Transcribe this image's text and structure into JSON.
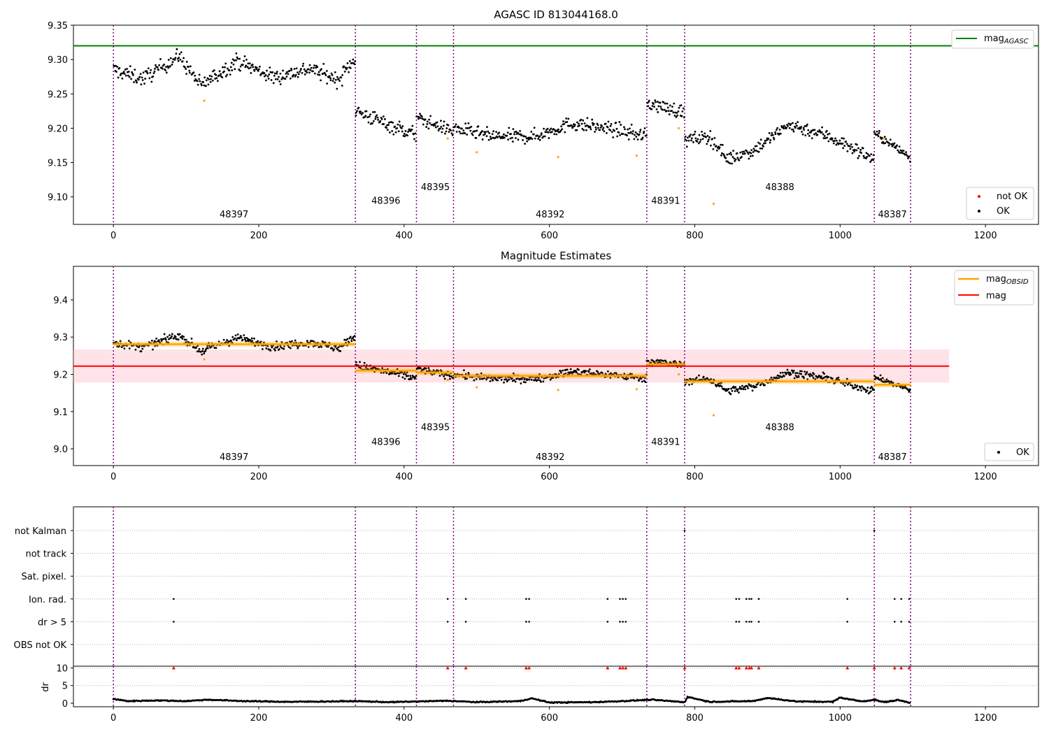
{
  "colors": {
    "ok": "#000000",
    "not_ok_panel1": "#ffa500",
    "not_ok_marker": "#ff0000",
    "agasc_line": "#008000",
    "obsid_line": "#ffa500",
    "obsid_band": "#ffa500",
    "mag_line": "#ff0000",
    "mag_band": "#ffc0cb",
    "boundary": "#800080",
    "ticks_dr_fill": "#000000"
  },
  "chart_data": [
    {
      "id": "top",
      "type": "scatter",
      "title": "AGASC ID 813044168.0",
      "xlim": [
        -55,
        1273
      ],
      "ylim": [
        9.06,
        9.35
      ],
      "xticks": [
        0,
        200,
        400,
        600,
        800,
        1000,
        1200
      ],
      "yticks": [
        "9.10",
        "9.15",
        "9.20",
        "9.25",
        "9.30",
        "9.35"
      ],
      "legend_upper": {
        "placement": "top-right",
        "entries": [
          {
            "label": "mag",
            "sub": "AGASC",
            "kind": "line"
          }
        ]
      },
      "legend_lower": {
        "placement": "bottom-right",
        "entries": [
          {
            "label": "not OK",
            "kind": "dot-red"
          },
          {
            "label": "OK",
            "kind": "dot-black"
          }
        ]
      },
      "agasc_mag": 9.32,
      "agasc_xrange": [
        -55,
        1273
      ],
      "boundaries": [
        0,
        333,
        417,
        468,
        734,
        786,
        1047,
        1097
      ],
      "obsid_labels": [
        {
          "text": "48397",
          "x": 166,
          "y": 9.07
        },
        {
          "text": "48396",
          "x": 375,
          "y": 9.09
        },
        {
          "text": "48395",
          "x": 443,
          "y": 9.11
        },
        {
          "text": "48392",
          "x": 601,
          "y": 9.07
        },
        {
          "text": "48391",
          "x": 760,
          "y": 9.09
        },
        {
          "text": "48388",
          "x": 917,
          "y": 9.11
        },
        {
          "text": "48387",
          "x": 1072,
          "y": 9.07
        }
      ],
      "segments": [
        {
          "x": [
            0,
            333
          ],
          "anchors": [
            [
              0,
              9.285
            ],
            [
              40,
              9.272
            ],
            [
              90,
              9.305
            ],
            [
              120,
              9.262
            ],
            [
              170,
              9.298
            ],
            [
              220,
              9.274
            ],
            [
              270,
              9.287
            ],
            [
              310,
              9.27
            ],
            [
              333,
              9.305
            ]
          ],
          "noise": 0.011
        },
        {
          "x": [
            333,
            417
          ],
          "anchors": [
            [
              333,
              9.225
            ],
            [
              360,
              9.213
            ],
            [
              417,
              9.19
            ]
          ],
          "noise": 0.011
        },
        {
          "x": [
            417,
            468
          ],
          "anchors": [
            [
              417,
              9.215
            ],
            [
              468,
              9.195
            ]
          ],
          "noise": 0.009
        },
        {
          "x": [
            468,
            734
          ],
          "anchors": [
            [
              468,
              9.2
            ],
            [
              520,
              9.188
            ],
            [
              580,
              9.188
            ],
            [
              630,
              9.207
            ],
            [
              690,
              9.198
            ],
            [
              734,
              9.188
            ]
          ],
          "noise": 0.01
        },
        {
          "x": [
            734,
            786
          ],
          "anchors": [
            [
              734,
              9.237
            ],
            [
              786,
              9.223
            ]
          ],
          "noise": 0.01
        },
        {
          "x": [
            786,
            1047
          ],
          "anchors": [
            [
              786,
              9.182
            ],
            [
              820,
              9.188
            ],
            [
              845,
              9.155
            ],
            [
              880,
              9.168
            ],
            [
              930,
              9.205
            ],
            [
              980,
              9.19
            ],
            [
              1047,
              9.155
            ]
          ],
          "noise": 0.01
        },
        {
          "x": [
            1047,
            1097
          ],
          "anchors": [
            [
              1047,
              9.193
            ],
            [
              1097,
              9.157
            ]
          ],
          "noise": 0.007
        }
      ],
      "not_ok_points": [
        [
          125,
          9.24
        ],
        [
          500,
          9.165
        ],
        [
          612,
          9.158
        ],
        [
          720,
          9.16
        ],
        [
          778,
          9.2
        ],
        [
          826,
          9.09
        ],
        [
          460,
          9.185
        ],
        [
          1060,
          9.185
        ]
      ]
    },
    {
      "id": "middle",
      "type": "scatter",
      "title": "Magnitude Estimates",
      "xlim": [
        -55,
        1273
      ],
      "ylim": [
        8.955,
        9.49
      ],
      "xticks": [
        0,
        200,
        400,
        600,
        800,
        1000,
        1200
      ],
      "yticks": [
        "9.0",
        "9.1",
        "9.2",
        "9.3",
        "9.4"
      ],
      "legend_upper": {
        "placement": "top-right",
        "entries": [
          {
            "label": "mag",
            "sub": "OBSID",
            "kind": "line-orange"
          },
          {
            "label": "mag",
            "sub": "",
            "kind": "line-red"
          }
        ]
      },
      "legend_lower": {
        "placement": "bottom-right",
        "entries": [
          {
            "label": "OK",
            "kind": "dot-black"
          }
        ]
      },
      "mag": 9.222,
      "mag_band": [
        9.178,
        9.267
      ],
      "mag_xrange": [
        -55,
        1150
      ],
      "obsid_mags": [
        {
          "x": [
            0,
            333
          ],
          "mag": 9.281,
          "err": 0.007
        },
        {
          "x": [
            333,
            417
          ],
          "mag": 9.21,
          "err": 0.007
        },
        {
          "x": [
            417,
            468
          ],
          "mag": 9.205,
          "err": 0.007
        },
        {
          "x": [
            468,
            734
          ],
          "mag": 9.196,
          "err": 0.007
        },
        {
          "x": [
            734,
            786
          ],
          "mag": 9.227,
          "err": 0.007
        },
        {
          "x": [
            786,
            1047
          ],
          "mag": 9.181,
          "err": 0.007
        },
        {
          "x": [
            1047,
            1097
          ],
          "mag": 9.172,
          "err": 0.007
        }
      ],
      "obsid_labels": [
        {
          "text": "48397",
          "x": 166,
          "y": 8.97
        },
        {
          "text": "48396",
          "x": 375,
          "y": 9.01
        },
        {
          "text": "48395",
          "x": 443,
          "y": 9.05
        },
        {
          "text": "48392",
          "x": 601,
          "y": 8.97
        },
        {
          "text": "48391",
          "x": 760,
          "y": 9.01
        },
        {
          "text": "48388",
          "x": 917,
          "y": 9.05
        },
        {
          "text": "48387",
          "x": 1072,
          "y": 8.97
        }
      ]
    },
    {
      "id": "flags",
      "type": "scatter",
      "xlim": [
        -55,
        1273
      ],
      "categories": [
        "not Kalman",
        "not track",
        "Sat. pixel.",
        "Ion. rad.",
        "dr > 5",
        "OBS not OK"
      ],
      "flag_points": {
        "not Kalman": [
          786,
          1047
        ],
        "not track": [],
        "Sat. pixel.": [],
        "Ion. rad.": [
          83,
          460,
          485,
          568,
          572,
          680,
          697,
          701,
          705,
          857,
          861,
          871,
          875,
          878,
          888,
          1010,
          1075,
          1084,
          1095
        ],
        "dr > 5": [
          83,
          460,
          485,
          568,
          572,
          680,
          697,
          701,
          705,
          857,
          861,
          871,
          875,
          878,
          888,
          1010,
          1075,
          1084,
          1095
        ],
        "OBS not OK": []
      }
    },
    {
      "id": "dr",
      "type": "scatter",
      "ylabel": "dr",
      "xlim": [
        -55,
        1273
      ],
      "ylim": [
        -1,
        10.5
      ],
      "xticks": [
        0,
        200,
        400,
        600,
        800,
        1000,
        1200
      ],
      "yticks": [
        "0",
        "5",
        "10"
      ],
      "dr_high_points": [
        83,
        460,
        485,
        568,
        572,
        680,
        697,
        701,
        705,
        786,
        857,
        861,
        871,
        875,
        878,
        888,
        1010,
        1047,
        1075,
        1084,
        1095
      ],
      "dr_high_value": 10,
      "dr_anchors": [
        [
          0,
          1.2
        ],
        [
          20,
          0.6
        ],
        [
          60,
          0.8
        ],
        [
          100,
          0.6
        ],
        [
          130,
          1.0
        ],
        [
          180,
          0.6
        ],
        [
          240,
          0.4
        ],
        [
          300,
          0.5
        ],
        [
          333,
          0.6
        ],
        [
          380,
          0.3
        ],
        [
          420,
          0.5
        ],
        [
          460,
          0.7
        ],
        [
          500,
          0.3
        ],
        [
          560,
          0.6
        ],
        [
          575,
          1.4
        ],
        [
          600,
          0.2
        ],
        [
          660,
          0.3
        ],
        [
          700,
          0.6
        ],
        [
          740,
          1.0
        ],
        [
          786,
          0.3
        ],
        [
          790,
          1.8
        ],
        [
          820,
          0.4
        ],
        [
          880,
          0.6
        ],
        [
          900,
          1.5
        ],
        [
          940,
          0.5
        ],
        [
          990,
          0.4
        ],
        [
          1000,
          1.6
        ],
        [
          1030,
          0.5
        ],
        [
          1047,
          1.0
        ],
        [
          1060,
          0.3
        ],
        [
          1080,
          0.9
        ],
        [
          1097,
          0.1
        ]
      ]
    }
  ],
  "text": {
    "top_title": "AGASC ID 813044168.0",
    "mid_title": "Magnitude Estimates",
    "legend_mag": "mag",
    "legend_agasc_sub": "AGASC",
    "legend_obsid_sub": "OBSID",
    "legend_not_ok": "not OK",
    "legend_ok": "OK",
    "dr_ylabel": "dr"
  }
}
